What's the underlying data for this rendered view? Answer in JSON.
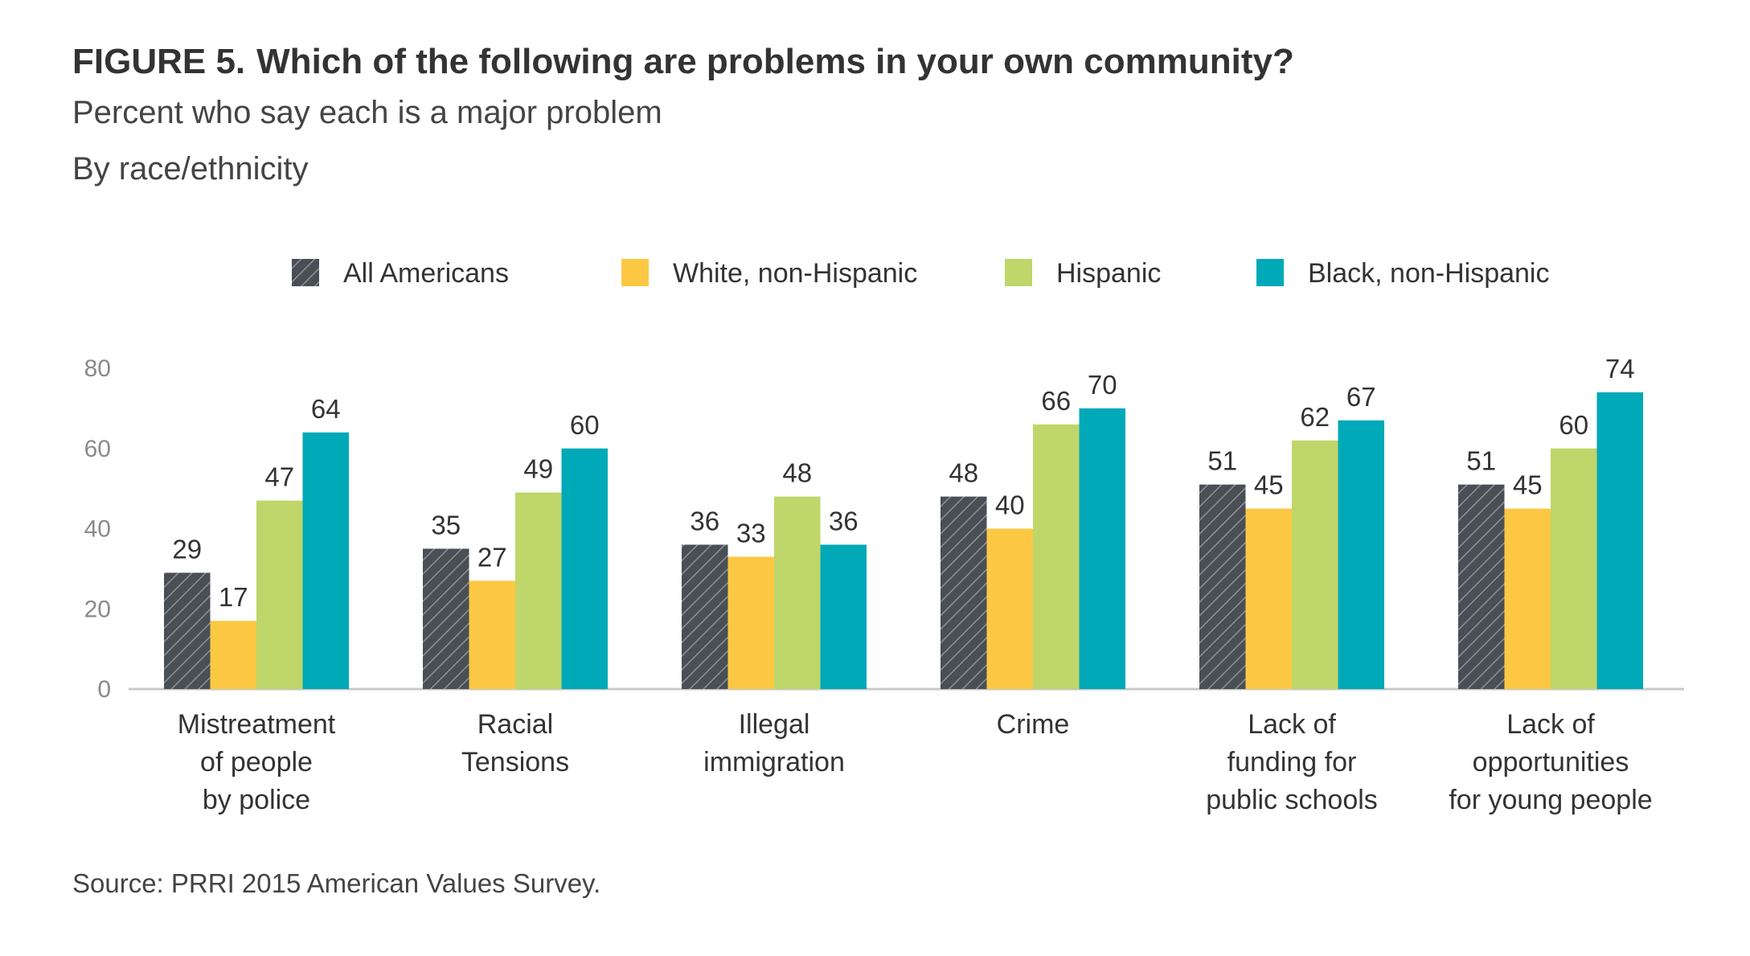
{
  "figure_label": "FIGURE 5.",
  "chart_data": {
    "type": "bar",
    "title": "Which of the following are problems in your own community?",
    "subtitle_lines": [
      "Percent who say each is a major problem",
      "By race/ethnicity"
    ],
    "categories": [
      [
        "Mistreatment",
        "of people",
        "by police"
      ],
      [
        "Racial",
        "Tensions"
      ],
      [
        "Illegal",
        "immigration"
      ],
      [
        "Crime"
      ],
      [
        "Lack of",
        "funding for",
        "public schools"
      ],
      [
        "Lack of",
        "opportunities",
        "for young people"
      ]
    ],
    "series": [
      {
        "name": "All Americans",
        "color": "#4a4f55",
        "pattern": "diagonal-hatch",
        "values": [
          29,
          35,
          36,
          48,
          51,
          51
        ]
      },
      {
        "name": "White, non-Hispanic",
        "color": "#fcc843",
        "values": [
          17,
          27,
          33,
          40,
          45,
          45
        ]
      },
      {
        "name": "Hispanic",
        "color": "#bfd66a",
        "values": [
          47,
          49,
          48,
          66,
          62,
          60
        ]
      },
      {
        "name": "Black, non-Hispanic",
        "color": "#00a9b7",
        "values": [
          64,
          60,
          36,
          70,
          67,
          74
        ]
      }
    ],
    "ylim": [
      0,
      80
    ],
    "yticks": [
      0,
      20,
      40,
      60,
      80
    ],
    "grid": false,
    "legend_position": "top"
  },
  "source": "Source: PRRI 2015 American Values Survey."
}
